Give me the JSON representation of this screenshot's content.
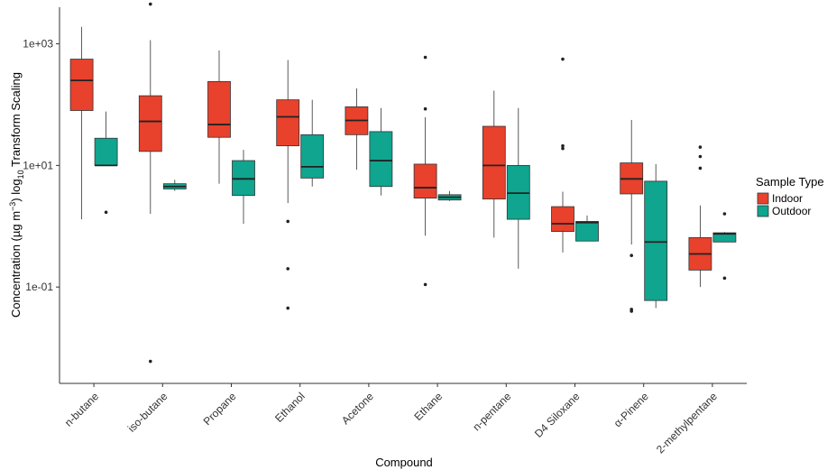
{
  "chart_data": {
    "type": "boxplot",
    "xlabel": "Compound",
    "ylabel": {
      "prefix": "Concentration (µg m",
      "sup": "−3",
      "mid": ") log",
      "sub": "10",
      "suffix": " Transform Scaling"
    },
    "y_scale": "log10",
    "ylim": [
      0.0026,
      4000
    ],
    "y_ticks": [
      {
        "value": 1000,
        "label": "1e+03"
      },
      {
        "value": 10,
        "label": "1e+01"
      },
      {
        "value": 0.1,
        "label": "1e-01"
      }
    ],
    "categories": [
      "n-butane",
      "iso-butane",
      "Propane",
      "Ethanol",
      "Acetone",
      "Ethane",
      "n-pentane",
      "D4 Siloxane",
      "α-Pinene",
      "2-methylpentane"
    ],
    "legend": {
      "title": "Sample Type",
      "position": "right"
    },
    "grid": false,
    "series": [
      {
        "name": "Indoor",
        "color": "#e8412c",
        "boxes": [
          {
            "whisker_low": 1.3,
            "q1": 80,
            "median": 250,
            "q3": 560,
            "whisker_high": 1900,
            "outliers": []
          },
          {
            "whisker_low": 1.6,
            "q1": 17,
            "median": 53,
            "q3": 140,
            "whisker_high": 1150,
            "outliers": [
              4500,
              0.006
            ]
          },
          {
            "whisker_low": 5,
            "q1": 29,
            "median": 47,
            "q3": 240,
            "whisker_high": 780,
            "outliers": []
          },
          {
            "whisker_low": 2.4,
            "q1": 21,
            "median": 63,
            "q3": 120,
            "whisker_high": 540,
            "outliers": [
              1.2,
              0.2,
              0.045
            ]
          },
          {
            "whisker_low": 8.5,
            "q1": 32,
            "median": 55,
            "q3": 92,
            "whisker_high": 185,
            "outliers": []
          },
          {
            "whisker_low": 0.7,
            "q1": 2.9,
            "median": 4.3,
            "q3": 10.5,
            "whisker_high": 62,
            "outliers": [
              600,
              85,
              0.11
            ]
          },
          {
            "whisker_low": 0.65,
            "q1": 2.8,
            "median": 10,
            "q3": 44,
            "whisker_high": 170,
            "outliers": []
          },
          {
            "whisker_low": 0.37,
            "q1": 0.82,
            "median": 1.1,
            "q3": 2.1,
            "whisker_high": 3.7,
            "outliers": [
              560,
              21,
              19
            ]
          },
          {
            "whisker_low": 0.5,
            "q1": 3.4,
            "median": 6,
            "q3": 11,
            "whisker_high": 56,
            "outliers": [
              0.33,
              0.043,
              0.04
            ]
          },
          {
            "whisker_low": 0.1,
            "q1": 0.19,
            "median": 0.35,
            "q3": 0.65,
            "whisker_high": 2.2,
            "outliers": [
              20,
              14,
              9
            ]
          }
        ]
      },
      {
        "name": "Outdoor",
        "color": "#0fa58f",
        "boxes": [
          {
            "whisker_low": 10,
            "q1": 10,
            "median": 10,
            "q3": 28,
            "whisker_high": 77,
            "outliers": [
              1.7
            ]
          },
          {
            "whisker_low": 3.8,
            "q1": 4.1,
            "median": 4.5,
            "q3": 5,
            "whisker_high": 5.8,
            "outliers": []
          },
          {
            "whisker_low": 1.1,
            "q1": 3.2,
            "median": 6,
            "q3": 12,
            "whisker_high": 18,
            "outliers": []
          },
          {
            "whisker_low": 4.5,
            "q1": 6.2,
            "median": 9.5,
            "q3": 32,
            "whisker_high": 120,
            "outliers": []
          },
          {
            "whisker_low": 3.2,
            "q1": 4.5,
            "median": 12,
            "q3": 36,
            "whisker_high": 88,
            "outliers": []
          },
          {
            "whisker_low": 2.6,
            "q1": 2.7,
            "median": 3,
            "q3": 3.3,
            "whisker_high": 3.8,
            "outliers": []
          },
          {
            "whisker_low": 0.2,
            "q1": 1.3,
            "median": 3.5,
            "q3": 10,
            "whisker_high": 88,
            "outliers": []
          },
          {
            "whisker_low": 0.57,
            "q1": 0.57,
            "median": 1.15,
            "q3": 1.2,
            "whisker_high": 1.5,
            "outliers": []
          },
          {
            "whisker_low": 0.045,
            "q1": 0.06,
            "median": 0.55,
            "q3": 5.5,
            "whisker_high": 10.5,
            "outliers": []
          },
          {
            "whisker_low": 0.55,
            "q1": 0.55,
            "median": 0.75,
            "q3": 0.78,
            "whisker_high": 0.8,
            "outliers": [
              1.6,
              0.14
            ]
          }
        ]
      }
    ]
  }
}
